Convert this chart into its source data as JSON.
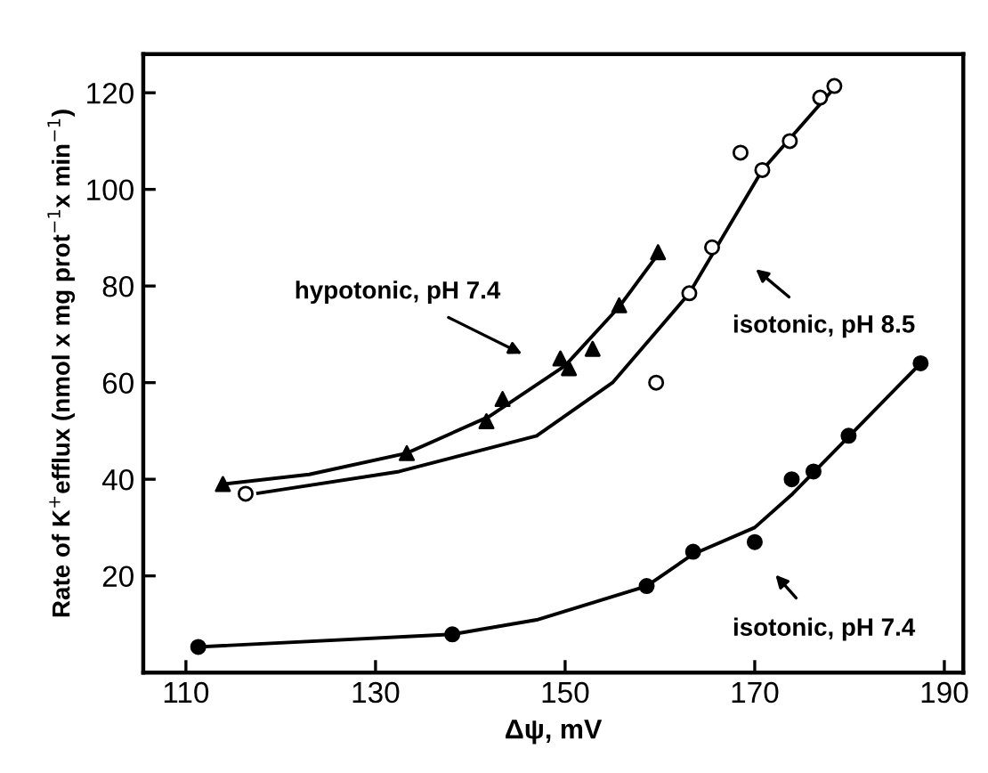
{
  "chart_data": {
    "type": "scatter",
    "xlabel": "Δψ, mV",
    "ylabel": "Rate of K$^{+}$efflux (nmol x mg prot$^{−1}$x min$^{−1}$)",
    "xlim": [
      105.5,
      192
    ],
    "ylim": [
      0,
      128
    ],
    "xticks": [
      110,
      130,
      150,
      170,
      190
    ],
    "yticks": [
      20,
      40,
      60,
      80,
      100,
      120
    ],
    "grid": false,
    "legend": false,
    "series": [
      {
        "marker": "triangle",
        "color": "#000000",
        "x": [
          113.9,
          133.3,
          141.7,
          143.4,
          149.5,
          150.4,
          152.9,
          155.7,
          159.8
        ],
        "values": [
          39,
          45.4,
          52,
          56.6,
          65,
          63,
          67,
          76,
          87
        ]
      },
      {
        "marker": "circle",
        "color": "#ffffff",
        "x": [
          116.3,
          159.6,
          163.1,
          165.5,
          168.5,
          170.8,
          173.7,
          176.9,
          178.4
        ],
        "values": [
          37,
          60,
          78.5,
          88,
          107.6,
          104,
          110,
          119,
          121.4
        ]
      },
      {
        "marker": "circle",
        "color": "#000000",
        "x": [
          111.3,
          138.1,
          158.6,
          163.5,
          170,
          173.9,
          176.2,
          179.9,
          187.5
        ],
        "values": [
          5.3,
          7.9,
          17.9,
          25,
          27,
          40,
          41.6,
          49,
          64
        ]
      },
      {
        "type": "line",
        "color": "#000000",
        "line_style": "solid",
        "x": [
          114,
          123,
          133.3,
          142,
          150,
          155.7,
          159.8
        ],
        "values": [
          39,
          41,
          45.4,
          53,
          63.5,
          75.7,
          86.6
        ]
      },
      {
        "type": "line",
        "color": "#000000",
        "line_style": "solid",
        "x": [
          117.6,
          132.5,
          147,
          155,
          163.1,
          170.8,
          178.4
        ],
        "values": [
          37.1,
          41.6,
          49,
          60,
          78.5,
          104,
          121
        ]
      },
      {
        "type": "line",
        "color": "#000000",
        "line_style": "solid",
        "x": [
          111.3,
          138.1,
          147,
          158.6,
          163.5,
          170,
          174,
          180,
          187.5
        ],
        "values": [
          5.3,
          7.9,
          10.9,
          17.9,
          24.5,
          30,
          37,
          49,
          64
        ]
      }
    ],
    "annotations": [
      "hypotonic, pH 7.4",
      "isotonic, pH 8.5",
      "isotonic, pH 7.4"
    ]
  }
}
